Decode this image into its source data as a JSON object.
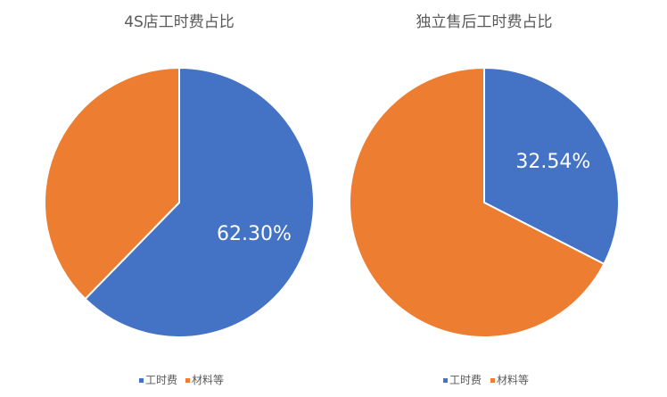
{
  "chart_data": [
    {
      "type": "pie",
      "title": "4S店工时费占比",
      "categories": [
        "工时费",
        "材料等"
      ],
      "values": [
        62.3,
        37.7
      ],
      "data_labels": [
        "62.30%",
        ""
      ],
      "colors": [
        "#4472C4",
        "#ED7D31"
      ],
      "legend": "bottom",
      "start": "12-o'clock, clockwise"
    },
    {
      "type": "pie",
      "title": "独立售后工时费占比",
      "categories": [
        "工时费",
        "材料等"
      ],
      "values": [
        32.54,
        67.46
      ],
      "data_labels": [
        "32.54%",
        ""
      ],
      "colors": [
        "#4472C4",
        "#ED7D31"
      ],
      "legend": "bottom",
      "start": "12-o'clock, clockwise"
    }
  ]
}
